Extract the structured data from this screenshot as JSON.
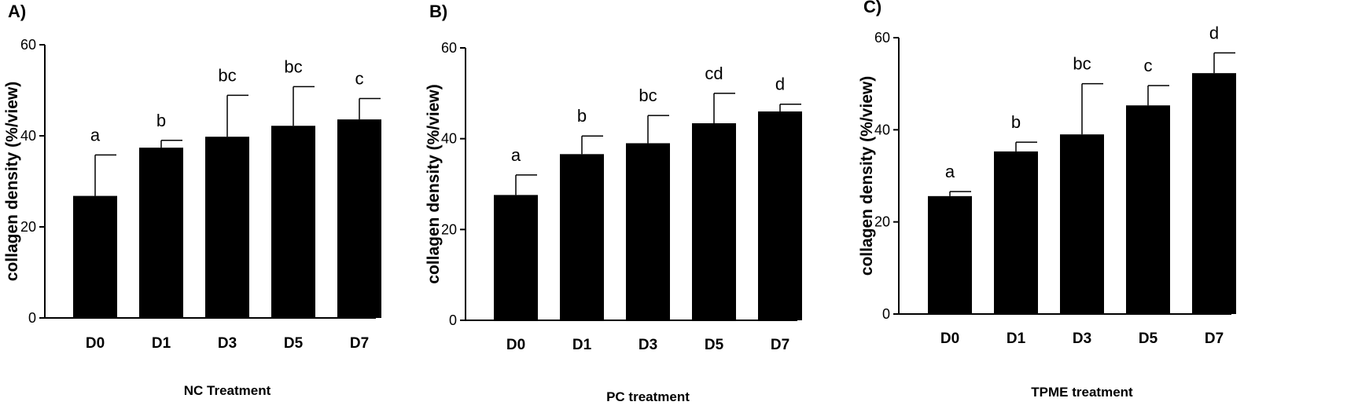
{
  "chart_data": [
    {
      "type": "bar",
      "panel_label": "A)",
      "categories": [
        "D0",
        "D1",
        "D3",
        "D5",
        "D7"
      ],
      "values": [
        26.8,
        37.4,
        39.8,
        42.2,
        43.6
      ],
      "errors": [
        9.0,
        1.6,
        9.1,
        8.6,
        4.6
      ],
      "significance": [
        "a",
        "b",
        "bc",
        "bc",
        "c"
      ],
      "ylabel": "collagen density (%/view)",
      "xlabel": "NC Treatment",
      "yticks": [
        0,
        20,
        40,
        60
      ],
      "ylim": [
        0,
        60
      ]
    },
    {
      "type": "bar",
      "panel_label": "B)",
      "categories": [
        "D0",
        "D1",
        "D3",
        "D5",
        "D7"
      ],
      "values": [
        27.6,
        36.6,
        39.0,
        43.4,
        46.0
      ],
      "errors": [
        4.4,
        4.0,
        6.1,
        6.6,
        1.6
      ],
      "significance": [
        "a",
        "b",
        "bc",
        "cd",
        "d"
      ],
      "ylabel": "collagen density (%/view)",
      "xlabel": "PC treatment",
      "yticks": [
        0,
        20,
        40,
        60
      ],
      "ylim": [
        0,
        60
      ]
    },
    {
      "type": "bar",
      "panel_label": "C)",
      "categories": [
        "D0",
        "D1",
        "D3",
        "D5",
        "D7"
      ],
      "values": [
        25.6,
        35.3,
        39.0,
        45.3,
        52.3
      ],
      "errors": [
        1.0,
        2.0,
        11.0,
        4.3,
        4.4
      ],
      "significance": [
        "a",
        "b",
        "bc",
        "c",
        "d"
      ],
      "ylabel": "collagen density (%/view)",
      "xlabel": "TPME treatment",
      "yticks": [
        0,
        20,
        40,
        60
      ],
      "ylim": [
        0,
        60
      ]
    }
  ]
}
